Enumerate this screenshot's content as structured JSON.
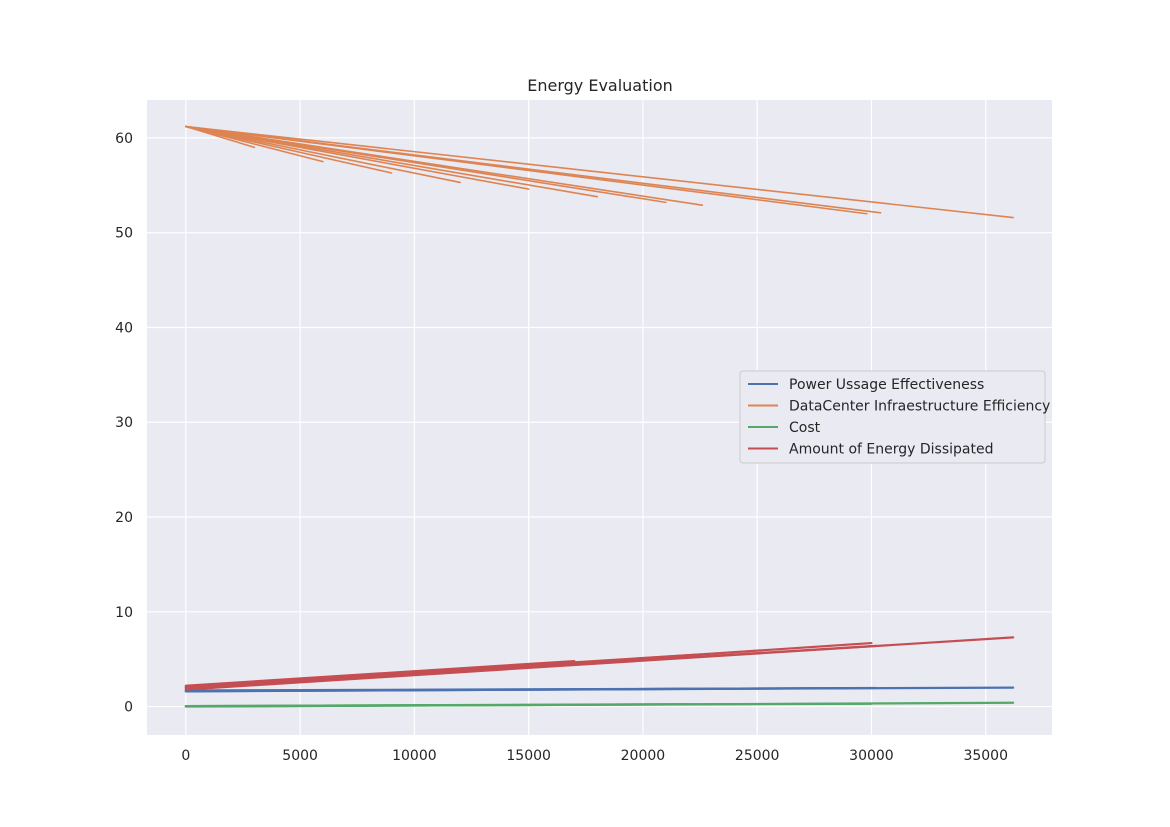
{
  "chart_data": {
    "type": "line",
    "title": "Energy Evaluation",
    "xlabel": "",
    "ylabel": "",
    "xlim": [
      -1700,
      37900
    ],
    "ylim": [
      -3,
      64
    ],
    "x_ticks": [
      0,
      5000,
      10000,
      15000,
      20000,
      25000,
      30000,
      35000
    ],
    "y_ticks": [
      0,
      10,
      20,
      30,
      40,
      50,
      60
    ],
    "grid": true,
    "legend_position": "center-right",
    "series": [
      {
        "name": "Power Ussage Effectiveness",
        "color": "#4c72b0",
        "x": [
          0,
          2000,
          5000,
          10000,
          15000,
          20000,
          25000,
          30000,
          36200
        ],
        "y": [
          1.6,
          1.65,
          1.7,
          1.75,
          1.8,
          1.85,
          1.9,
          1.95,
          2.0
        ],
        "segments": [
          [
            0,
            1.6,
            29000,
            1.95
          ],
          [
            0,
            1.62,
            36200,
            2.0
          ],
          [
            0,
            1.64,
            30200,
            1.96
          ],
          [
            0,
            1.7,
            22000,
            1.88
          ]
        ]
      },
      {
        "name": "DataCenter Infraestructure Efficiency",
        "color": "#dd8452",
        "x": [
          0,
          36200
        ],
        "y": [
          61.2,
          51.6
        ],
        "segments": [
          [
            0,
            61.2,
            36200,
            51.6
          ],
          [
            0,
            61.2,
            30400,
            52.1
          ],
          [
            0,
            61.2,
            29800,
            52.0
          ],
          [
            0,
            61.2,
            22600,
            52.9
          ],
          [
            0,
            61.2,
            21000,
            53.2
          ],
          [
            0,
            61.2,
            18000,
            53.8
          ],
          [
            0,
            61.2,
            15000,
            54.6
          ],
          [
            0,
            61.2,
            12000,
            55.3
          ],
          [
            0,
            61.2,
            9000,
            56.3
          ],
          [
            0,
            61.2,
            6000,
            57.5
          ],
          [
            0,
            61.2,
            3000,
            59.0
          ]
        ]
      },
      {
        "name": "Cost",
        "color": "#55a868",
        "x": [
          0,
          36200
        ],
        "y": [
          0.0,
          0.4
        ],
        "segments": [
          [
            0,
            0.0,
            36200,
            0.4
          ],
          [
            0,
            0.02,
            30000,
            0.3
          ],
          [
            0,
            0.05,
            22000,
            0.25
          ],
          [
            0,
            0.05,
            11500,
            0.15
          ]
        ]
      },
      {
        "name": "Amount of Energy Dissipated",
        "color": "#c44e52",
        "x": [
          0,
          36200
        ],
        "y": [
          1.8,
          7.3
        ],
        "segments": [
          [
            0,
            1.8,
            36200,
            7.3
          ],
          [
            0,
            1.9,
            30000,
            6.7
          ],
          [
            0,
            2.0,
            30200,
            6.4
          ],
          [
            0,
            2.1,
            22500,
            5.5
          ],
          [
            0,
            2.2,
            17000,
            4.8
          ],
          [
            0,
            2.0,
            12000,
            3.9
          ]
        ]
      }
    ]
  }
}
